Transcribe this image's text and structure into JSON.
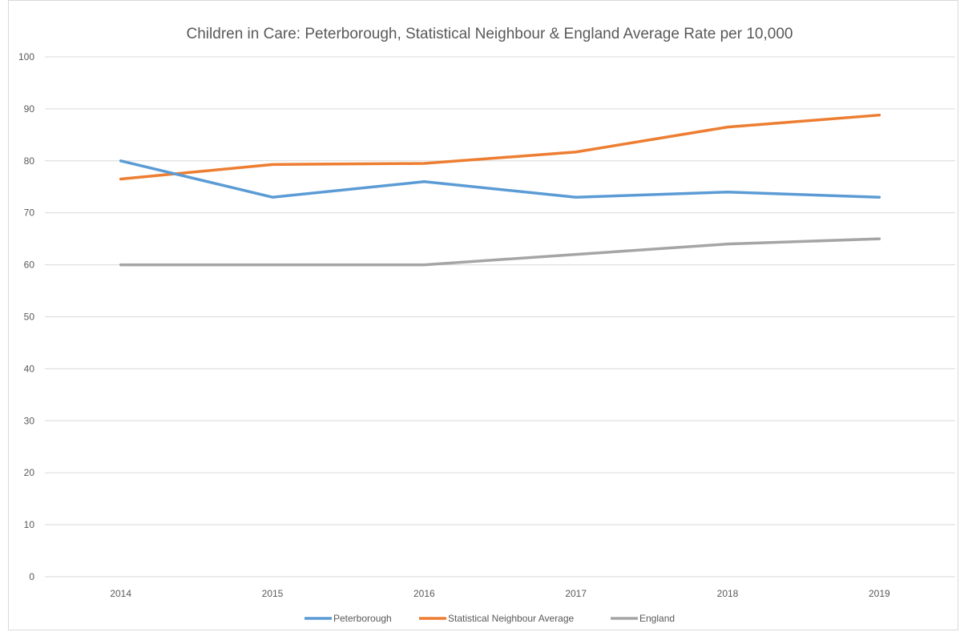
{
  "chart_data": {
    "type": "line",
    "title": "Children in Care: Peterborough, Statistical Neighbour & England Average Rate per 10,000",
    "xlabel": "",
    "ylabel": "",
    "categories": [
      "2014",
      "2015",
      "2016",
      "2017",
      "2018",
      "2019"
    ],
    "ylim": [
      0,
      100
    ],
    "yticks": [
      "0",
      "10",
      "20",
      "30",
      "40",
      "50",
      "60",
      "70",
      "80",
      "90",
      "100"
    ],
    "grid": true,
    "legend_position": "bottom",
    "series": [
      {
        "name": "Peterborough",
        "color": "#5b9bd5",
        "values": [
          80,
          73,
          76,
          73,
          74,
          73
        ]
      },
      {
        "name": "Statistical Neighbour Average",
        "color": "#ed7d31",
        "values": [
          76.5,
          79.3,
          79.5,
          81.7,
          86.5,
          88.8
        ]
      },
      {
        "name": "England",
        "color": "#a5a5a5",
        "values": [
          60,
          60,
          60,
          62,
          64,
          65
        ]
      }
    ]
  }
}
